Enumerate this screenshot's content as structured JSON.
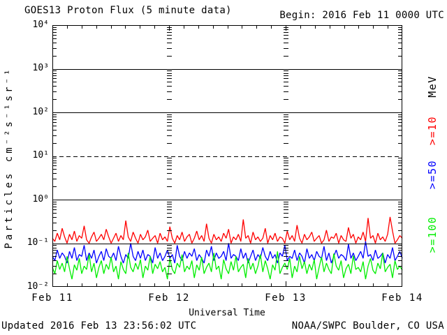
{
  "header": {
    "title": "GOES13 Proton Flux (5 minute data)",
    "begin_label": "Begin: 2016 Feb 11 0000 UTC"
  },
  "footer": {
    "updated": "Updated 2016 Feb 13 23:56:02 UTC",
    "source": "NOAA/SWPC Boulder, CO USA"
  },
  "right_labels": [
    {
      "text": "MeV",
      "color": "#000000"
    },
    {
      "text": ">=10",
      "color": "#ff0000"
    },
    {
      "text": ">=50",
      "color": "#0000ff"
    },
    {
      "text": ">=100",
      "color": "#00ee00"
    }
  ],
  "chart_data": {
    "type": "line",
    "title": "GOES13 Proton Flux (5 minute data)",
    "xlabel": "Universal Time",
    "ylabel": "Particles cm⁻²s⁻¹sr⁻¹",
    "right_axis_label": "MeV",
    "y_scale": "log",
    "ylim": [
      0.01,
      10000
    ],
    "y_tick_labels": [
      "10⁴",
      "10³",
      "10²",
      "10¹",
      "10⁰",
      "10⁻¹",
      "10⁻²"
    ],
    "y_tick_exponents": [
      4,
      3,
      2,
      1,
      0,
      -1,
      -2
    ],
    "x_tick_labels": [
      "Feb 11",
      "Feb 12",
      "Feb 13",
      "Feb 14"
    ],
    "x_span_days": 3,
    "x_minor_tick_hours": 3,
    "grid": "decade lines, dashed event threshold at 10^1",
    "gridlines": [
      {
        "exp": 3,
        "style": "solid"
      },
      {
        "exp": 2,
        "style": "solid"
      },
      {
        "exp": 1,
        "style": "dashed"
      },
      {
        "exp": 0,
        "style": "solid"
      },
      {
        "exp": -1,
        "style": "solid"
      }
    ],
    "day_boundary_hours": [
      24,
      48
    ],
    "axis_color": "#000000",
    "background": "#ffffff",
    "legend_position": "right, rotated",
    "series": [
      {
        "name": ">=10",
        "unit": "MeV",
        "color": "#ff0000",
        "approx_range": [
          0.09,
          0.4
        ],
        "values": [
          0.13,
          0.11,
          0.17,
          0.12,
          0.22,
          0.14,
          0.1,
          0.16,
          0.12,
          0.19,
          0.11,
          0.15,
          0.13,
          0.25,
          0.12,
          0.1,
          0.14,
          0.18,
          0.11,
          0.13,
          0.16,
          0.12,
          0.21,
          0.14,
          0.1,
          0.13,
          0.17,
          0.11,
          0.15,
          0.12,
          0.33,
          0.14,
          0.11,
          0.18,
          0.13,
          0.1,
          0.16,
          0.12,
          0.14,
          0.2,
          0.11,
          0.13,
          0.15,
          0.1,
          0.17,
          0.12,
          0.14,
          0.11,
          0.24,
          0.13,
          0.1,
          0.15,
          0.12,
          0.18,
          0.11,
          0.14,
          0.16,
          0.1,
          0.13,
          0.19,
          0.12,
          0.15,
          0.11,
          0.28,
          0.13,
          0.1,
          0.16,
          0.12,
          0.14,
          0.11,
          0.17,
          0.13,
          0.21,
          0.1,
          0.14,
          0.12,
          0.16,
          0.11,
          0.35,
          0.13,
          0.15,
          0.1,
          0.18,
          0.12,
          0.14,
          0.11,
          0.13,
          0.22,
          0.1,
          0.15,
          0.12,
          0.17,
          0.11,
          0.14,
          0.13,
          0.1,
          0.19,
          0.12,
          0.15,
          0.11,
          0.26,
          0.13,
          0.1,
          0.16,
          0.12,
          0.14,
          0.18,
          0.11,
          0.13,
          0.15,
          0.1,
          0.12,
          0.2,
          0.11,
          0.14,
          0.13,
          0.17,
          0.1,
          0.15,
          0.12,
          0.11,
          0.23,
          0.13,
          0.16,
          0.1,
          0.14,
          0.12,
          0.18,
          0.11,
          0.38,
          0.13,
          0.15,
          0.1,
          0.17,
          0.12,
          0.14,
          0.11,
          0.16,
          0.4,
          0.19,
          0.1,
          0.12,
          0.15,
          0.13
        ]
      },
      {
        "name": ">=50",
        "unit": "MeV",
        "color": "#0000ff",
        "approx_range": [
          0.03,
          0.11
        ],
        "values": [
          0.05,
          0.04,
          0.07,
          0.045,
          0.06,
          0.05,
          0.035,
          0.065,
          0.045,
          0.08,
          0.04,
          0.055,
          0.05,
          0.09,
          0.04,
          0.06,
          0.045,
          0.07,
          0.035,
          0.05,
          0.065,
          0.04,
          0.075,
          0.05,
          0.045,
          0.06,
          0.04,
          0.085,
          0.05,
          0.035,
          0.055,
          0.045,
          0.1,
          0.05,
          0.04,
          0.065,
          0.045,
          0.07,
          0.04,
          0.055,
          0.05,
          0.035,
          0.08,
          0.045,
          0.06,
          0.04,
          0.05,
          0.07,
          0.045,
          0.055,
          0.035,
          0.09,
          0.05,
          0.04,
          0.065,
          0.045,
          0.06,
          0.05,
          0.075,
          0.04,
          0.055,
          0.045,
          0.035,
          0.07,
          0.05,
          0.085,
          0.04,
          0.06,
          0.045,
          0.05,
          0.065,
          0.04,
          0.1,
          0.045,
          0.055,
          0.05,
          0.04,
          0.075,
          0.045,
          0.06,
          0.035,
          0.05,
          0.07,
          0.04,
          0.055,
          0.045,
          0.08,
          0.05,
          0.04,
          0.065,
          0.045,
          0.055,
          0.035,
          0.06,
          0.05,
          0.09,
          0.04,
          0.05,
          0.045,
          0.07,
          0.04,
          0.06,
          0.05,
          0.035,
          0.075,
          0.045,
          0.055,
          0.04,
          0.065,
          0.05,
          0.045,
          0.085,
          0.04,
          0.06,
          0.035,
          0.05,
          0.07,
          0.045,
          0.055,
          0.05,
          0.04,
          0.095,
          0.045,
          0.06,
          0.04,
          0.05,
          0.065,
          0.045,
          0.11,
          0.05,
          0.055,
          0.04,
          0.07,
          0.045,
          0.05,
          0.06,
          0.035,
          0.055,
          0.045,
          0.08,
          0.04,
          0.05,
          0.065,
          0.045
        ]
      },
      {
        "name": ">=100",
        "unit": "MeV",
        "color": "#00ee00",
        "approx_range": [
          0.014,
          0.065
        ],
        "values": [
          0.028,
          0.02,
          0.04,
          0.025,
          0.035,
          0.022,
          0.05,
          0.026,
          0.015,
          0.032,
          0.024,
          0.045,
          0.02,
          0.03,
          0.025,
          0.055,
          0.022,
          0.035,
          0.016,
          0.028,
          0.04,
          0.02,
          0.033,
          0.025,
          0.048,
          0.022,
          0.03,
          0.015,
          0.038,
          0.025,
          0.02,
          0.06,
          0.028,
          0.022,
          0.035,
          0.025,
          0.042,
          0.016,
          0.03,
          0.024,
          0.05,
          0.02,
          0.033,
          0.026,
          0.038,
          0.022,
          0.028,
          0.015,
          0.045,
          0.025,
          0.02,
          0.035,
          0.028,
          0.055,
          0.022,
          0.03,
          0.025,
          0.04,
          0.016,
          0.032,
          0.024,
          0.048,
          0.02,
          0.028,
          0.035,
          0.022,
          0.06,
          0.025,
          0.03,
          0.015,
          0.042,
          0.026,
          0.02,
          0.038,
          0.024,
          0.05,
          0.022,
          0.028,
          0.033,
          0.016,
          0.045,
          0.025,
          0.035,
          0.02,
          0.03,
          0.055,
          0.022,
          0.04,
          0.026,
          0.015,
          0.032,
          0.024,
          0.065,
          0.02,
          0.028,
          0.035,
          0.025,
          0.045,
          0.016,
          0.03,
          0.022,
          0.05,
          0.026,
          0.038,
          0.02,
          0.033,
          0.024,
          0.042,
          0.015,
          0.028,
          0.048,
          0.022,
          0.035,
          0.025,
          0.02,
          0.058,
          0.03,
          0.024,
          0.04,
          0.016,
          0.026,
          0.033,
          0.02,
          0.052,
          0.025,
          0.028,
          0.022,
          0.038,
          0.015,
          0.03,
          0.045,
          0.024,
          0.02,
          0.035,
          0.026,
          0.06,
          0.022,
          0.028,
          0.033,
          0.016,
          0.04,
          0.025,
          0.03,
          0.024
        ]
      }
    ]
  }
}
